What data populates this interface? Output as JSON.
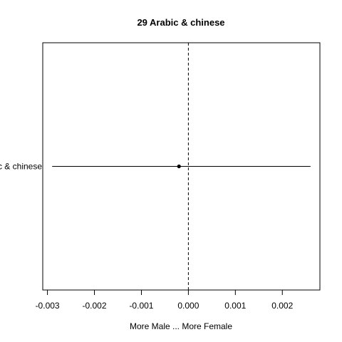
{
  "chart_data": {
    "type": "scatter",
    "title": "29 Arabic & chinese",
    "xlabel": "More Male ... More Female",
    "ylabel": "",
    "xlim": [
      -0.0031,
      0.0028
    ],
    "x_ticks": [
      -0.003,
      -0.002,
      -0.001,
      0.0,
      0.001,
      0.002
    ],
    "x_tick_labels": [
      "-0.003",
      "-0.002",
      "-0.001",
      "0.000",
      "0.001",
      "0.002"
    ],
    "reference_line_x": 0,
    "reference_line_style": "dashed",
    "grid": false,
    "legend": "none",
    "categories": [
      "Arabic & chinese"
    ],
    "points": [
      {
        "category": "Arabic & chinese",
        "x": -0.0002,
        "ci_low": -0.0029,
        "ci_high": 0.0026
      }
    ]
  }
}
